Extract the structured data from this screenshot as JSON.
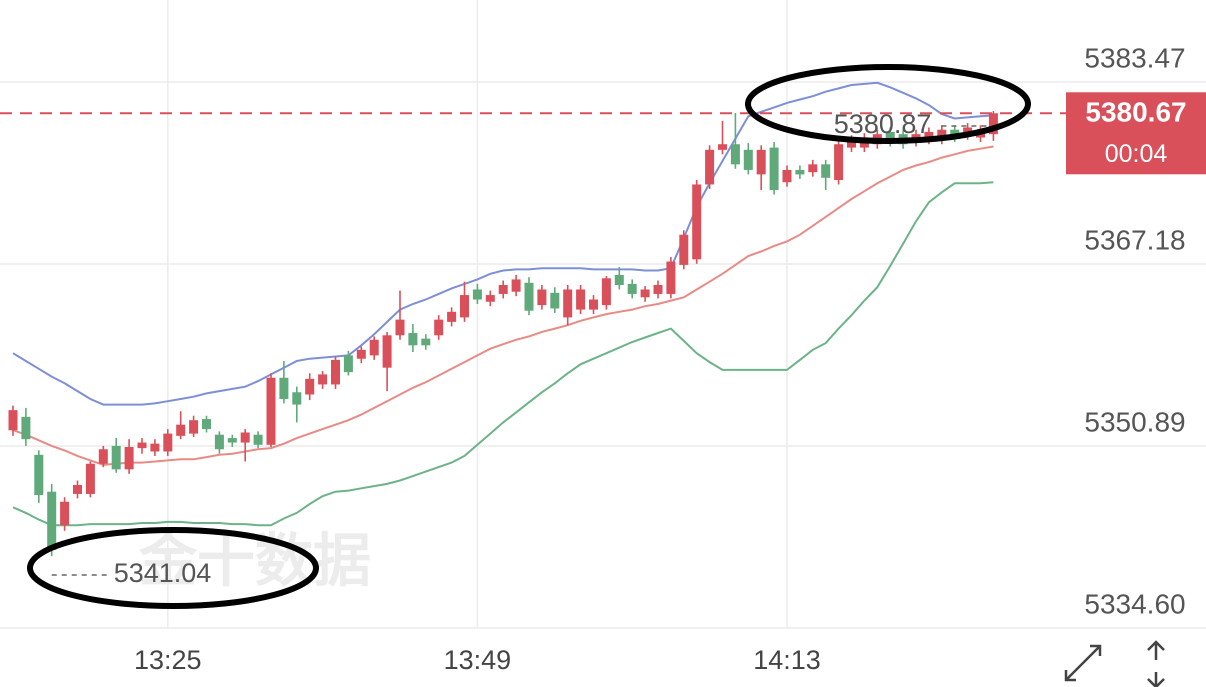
{
  "chart_data": {
    "type": "candlestick",
    "watermark": "金十数据",
    "countdown": "00:04",
    "categories": [
      null,
      null,
      null,
      null,
      null,
      null,
      null,
      null,
      null,
      null,
      null,
      null,
      "13:25",
      null,
      null,
      null,
      null,
      null,
      null,
      null,
      null,
      null,
      null,
      null,
      null,
      null,
      null,
      null,
      null,
      null,
      null,
      null,
      null,
      null,
      null,
      null,
      "13:49",
      null,
      null,
      null,
      null,
      null,
      null,
      null,
      null,
      null,
      null,
      null,
      null,
      null,
      null,
      null,
      null,
      null,
      null,
      null,
      null,
      null,
      null,
      null,
      "14:13",
      null,
      null,
      null,
      null,
      null,
      null,
      null,
      null,
      null,
      null,
      null,
      null,
      null,
      null,
      null,
      null
    ],
    "candles": {
      "up_color": "#d9505a",
      "down_color": "#5fa97a",
      "open": [
        5352.3,
        5353.5,
        5350.1,
        5346.8,
        5343.8,
        5346.6,
        5346.6,
        5349.3,
        5350.9,
        5348.8,
        5350.7,
        5350.4,
        5350.4,
        5351.8,
        5352.0,
        5353.3,
        5351.9,
        5351.6,
        5351.2,
        5351.9,
        5351.0,
        5357.0,
        5355.7,
        5355.5,
        5356.4,
        5356.4,
        5359.0,
        5358.7,
        5359.0,
        5357.9,
        5360.8,
        5361.0,
        5360.5,
        5360.8,
        5362.0,
        5362.4,
        5364.9,
        5363.8,
        5364.5,
        5364.7,
        5365.5,
        5363.5,
        5364.6,
        5362.4,
        5363.1,
        5363.1,
        5363.5,
        5366.2,
        5365.4,
        5364.2,
        5364.5,
        5364.5,
        5367.1,
        5367.6,
        5374.3,
        5377.4,
        5377.9,
        5377.4,
        5375.2,
        5377.6,
        5374.5,
        5375.6,
        5375.4,
        5376.1,
        5374.7,
        5377.6,
        5377.6,
        5377.9,
        5379.0,
        5378.8,
        5378.1,
        5378.3,
        5378.3,
        5379.2,
        5378.7,
        5378.5,
        5378.8
      ],
      "high": [
        5354.5,
        5354.3,
        5350.5,
        5347.5,
        5346.3,
        5347.8,
        5349.5,
        5350.9,
        5351.6,
        5351.5,
        5351.6,
        5351.5,
        5352.4,
        5354.0,
        5353.6,
        5353.6,
        5352.2,
        5351.9,
        5352.4,
        5352.2,
        5357.4,
        5358.5,
        5356.2,
        5357.4,
        5357.6,
        5358.9,
        5359.4,
        5359.8,
        5360.7,
        5361.1,
        5364.8,
        5361.8,
        5360.9,
        5362.6,
        5363.3,
        5365.6,
        5365.4,
        5364.8,
        5365.7,
        5366.2,
        5366.0,
        5365.3,
        5365.1,
        5365.3,
        5365.3,
        5364.4,
        5366.1,
        5366.9,
        5365.8,
        5365.2,
        5365.7,
        5367.8,
        5370.2,
        5374.7,
        5377.8,
        5380.0,
        5380.7,
        5378.0,
        5377.8,
        5378.1,
        5376.0,
        5376.0,
        5376.5,
        5376.5,
        5378.3,
        5378.7,
        5378.9,
        5379.2,
        5379.4,
        5379.2,
        5379.2,
        5379.4,
        5379.6,
        5379.6,
        5379.8,
        5379.6,
        5380.87
      ],
      "low": [
        5351.8,
        5350.9,
        5345.8,
        5341.04,
        5343.3,
        5346.2,
        5346.3,
        5349.0,
        5348.5,
        5348.4,
        5350.2,
        5350.0,
        5350.0,
        5351.5,
        5351.7,
        5352.1,
        5350.2,
        5350.8,
        5349.5,
        5350.7,
        5350.8,
        5354.7,
        5353.0,
        5355.0,
        5356.0,
        5356.0,
        5357.2,
        5358.3,
        5358.6,
        5355.8,
        5360.4,
        5359.3,
        5359.5,
        5360.4,
        5361.6,
        5362.0,
        5363.6,
        5363.4,
        5364.1,
        5364.3,
        5362.6,
        5363.1,
        5362.8,
        5361.7,
        5362.7,
        5362.7,
        5363.1,
        5364.9,
        5364.1,
        5363.8,
        5364.1,
        5364.1,
        5366.7,
        5367.2,
        5373.9,
        5377.0,
        5375.7,
        5375.2,
        5373.8,
        5373.4,
        5374.1,
        5374.8,
        5375.0,
        5373.8,
        5374.3,
        5377.2,
        5377.2,
        5377.5,
        5377.7,
        5377.5,
        5377.7,
        5377.9,
        5377.9,
        5378.1,
        5378.3,
        5378.1,
        5378.2
      ],
      "close": [
        5354.1,
        5351.5,
        5346.5,
        5341.6,
        5345.9,
        5347.4,
        5349.3,
        5350.6,
        5348.8,
        5350.8,
        5351.2,
        5351.1,
        5352.0,
        5352.8,
        5353.2,
        5352.4,
        5350.6,
        5351.2,
        5352.1,
        5351.0,
        5357.0,
        5355.1,
        5354.6,
        5356.9,
        5357.3,
        5358.6,
        5357.5,
        5359.5,
        5360.4,
        5360.8,
        5362.2,
        5359.9,
        5359.9,
        5362.2,
        5362.9,
        5364.4,
        5364.0,
        5364.4,
        5365.3,
        5365.8,
        5363.0,
        5364.9,
        5363.2,
        5364.9,
        5364.9,
        5364.0,
        5365.9,
        5365.3,
        5364.5,
        5364.9,
        5365.3,
        5367.4,
        5369.8,
        5374.3,
        5377.4,
        5377.9,
        5376.1,
        5375.6,
        5377.4,
        5373.8,
        5375.6,
        5375.2,
        5376.1,
        5374.9,
        5377.9,
        5378.3,
        5378.5,
        5378.8,
        5378.1,
        5377.9,
        5378.8,
        5379.0,
        5379.2,
        5378.5,
        5379.4,
        5379.2,
        5380.67
      ]
    },
    "bands": [
      {
        "color": "#7d8fd6",
        "values": [
          5359.2,
          5358.5,
          5357.8,
          5357.1,
          5356.5,
          5355.8,
          5355.1,
          5354.6,
          5354.6,
          5354.6,
          5354.6,
          5354.7,
          5354.9,
          5355.1,
          5355.3,
          5355.6,
          5355.8,
          5356.0,
          5356.2,
          5356.7,
          5357.3,
          5357.9,
          5358.5,
          5358.7,
          5358.8,
          5358.9,
          5359.0,
          5359.9,
          5360.9,
          5362.0,
          5363.1,
          5363.6,
          5364.0,
          5364.5,
          5365.0,
          5365.4,
          5365.8,
          5366.3,
          5366.6,
          5366.7,
          5366.7,
          5366.8,
          5366.8,
          5366.8,
          5366.8,
          5366.7,
          5366.7,
          5366.7,
          5366.7,
          5366.6,
          5366.6,
          5366.8,
          5369.5,
          5372.3,
          5374.4,
          5376.4,
          5378.4,
          5380.4,
          5380.8,
          5381.2,
          5381.6,
          5381.9,
          5382.2,
          5382.6,
          5382.9,
          5383.2,
          5383.3,
          5383.4,
          5383.0,
          5382.5,
          5382.0,
          5381.4,
          5380.6,
          5380.2,
          5380.3,
          5380.4,
          5380.5
        ]
      },
      {
        "color": "#e88b86",
        "values": [
          5352.3,
          5351.9,
          5351.4,
          5350.9,
          5350.5,
          5350.0,
          5349.6,
          5349.2,
          5349.3,
          5349.4,
          5349.4,
          5349.5,
          5349.6,
          5349.7,
          5349.7,
          5349.9,
          5350.1,
          5350.2,
          5350.4,
          5350.6,
          5350.7,
          5351.1,
          5351.6,
          5352.0,
          5352.4,
          5352.8,
          5353.2,
          5353.7,
          5354.3,
          5354.9,
          5355.5,
          5356.1,
          5356.6,
          5357.2,
          5357.8,
          5358.4,
          5359.0,
          5359.6,
          5360.0,
          5360.4,
          5360.7,
          5361.1,
          5361.4,
          5361.7,
          5362.1,
          5362.4,
          5362.7,
          5362.9,
          5363.1,
          5363.4,
          5363.6,
          5363.9,
          5364.2,
          5364.9,
          5365.6,
          5366.3,
          5367.1,
          5367.9,
          5368.3,
          5368.8,
          5369.2,
          5369.8,
          5370.6,
          5371.4,
          5372.2,
          5373.0,
          5373.7,
          5374.4,
          5375.0,
          5375.6,
          5376.0,
          5376.3,
          5376.7,
          5377.0,
          5377.3,
          5377.5,
          5377.7
        ]
      },
      {
        "color": "#6db388",
        "values": [
          5345.4,
          5344.9,
          5344.3,
          5343.8,
          5343.8,
          5343.8,
          5343.9,
          5343.9,
          5343.9,
          5343.9,
          5344.0,
          5344.0,
          5344.1,
          5344.1,
          5344.0,
          5344.0,
          5344.0,
          5343.9,
          5343.9,
          5343.8,
          5343.8,
          5344.4,
          5344.9,
          5345.7,
          5346.4,
          5346.8,
          5346.9,
          5347.1,
          5347.3,
          5347.5,
          5347.8,
          5348.2,
          5348.6,
          5349.0,
          5349.4,
          5350.0,
          5351.0,
          5352.0,
          5353.0,
          5353.9,
          5354.8,
          5355.7,
          5356.5,
          5357.4,
          5358.2,
          5358.7,
          5359.2,
          5359.7,
          5360.2,
          5360.6,
          5361.0,
          5361.4,
          5360.3,
          5359.2,
          5358.4,
          5357.7,
          5357.7,
          5357.7,
          5357.7,
          5357.7,
          5357.7,
          5358.6,
          5359.5,
          5360.1,
          5361.4,
          5362.6,
          5363.9,
          5365.1,
          5367.0,
          5369.0,
          5371.0,
          5372.7,
          5373.6,
          5374.4,
          5374.4,
          5374.4,
          5374.5
        ]
      }
    ],
    "ylim": [
      5334.6,
      5390.81
    ],
    "yticks": [
      {
        "value": 5334.6,
        "label": "5334.60"
      },
      5350.89,
      5367.18,
      5383.47
    ],
    "grid": true,
    "last_price_color": "#d9505a"
  }
}
